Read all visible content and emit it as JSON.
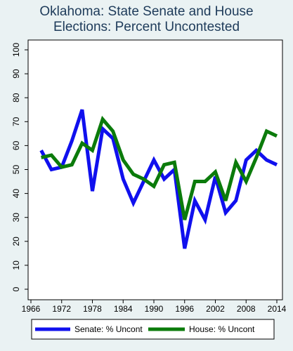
{
  "chart_data": {
    "type": "line",
    "title_line1": "Oklahoma: State Senate and House",
    "title_line2": "Elections: Percent Uncontested",
    "xlabel": "",
    "ylabel": "",
    "xlim": [
      1966,
      2014
    ],
    "ylim": [
      0,
      100
    ],
    "x_ticks": [
      1966,
      1972,
      1978,
      1984,
      1990,
      1996,
      2002,
      2008,
      2014
    ],
    "y_ticks": [
      0,
      10,
      20,
      30,
      40,
      50,
      60,
      70,
      80,
      90,
      100
    ],
    "grid": false,
    "legend_position": "bottom",
    "series": [
      {
        "name": "Senate: % Uncont",
        "color": "#1010ee",
        "x": [
          1968,
          1970,
          1972,
          1974,
          1976,
          1978,
          1980,
          1982,
          1984,
          1986,
          1988,
          1990,
          1992,
          1994,
          1996,
          1998,
          2000,
          2002,
          2004,
          2006,
          2008,
          2010,
          2012,
          2014
        ],
        "y": [
          58,
          50,
          51,
          62,
          75,
          41,
          67,
          63,
          46,
          36,
          45,
          54,
          46,
          50,
          17,
          37,
          29,
          47,
          32,
          37,
          54,
          58,
          54,
          52
        ]
      },
      {
        "name": "House: % Uncont",
        "color": "#0b7b0b",
        "x": [
          1968,
          1970,
          1972,
          1974,
          1976,
          1978,
          1980,
          1982,
          1984,
          1986,
          1988,
          1990,
          1992,
          1994,
          1996,
          1998,
          2000,
          2002,
          2004,
          2006,
          2008,
          2010,
          2012,
          2014
        ],
        "y": [
          55,
          56,
          51,
          52,
          61,
          58,
          71,
          66,
          54,
          48,
          46,
          43,
          52,
          53,
          29,
          45,
          45,
          49,
          37,
          53,
          45,
          55,
          66,
          64
        ]
      }
    ]
  }
}
